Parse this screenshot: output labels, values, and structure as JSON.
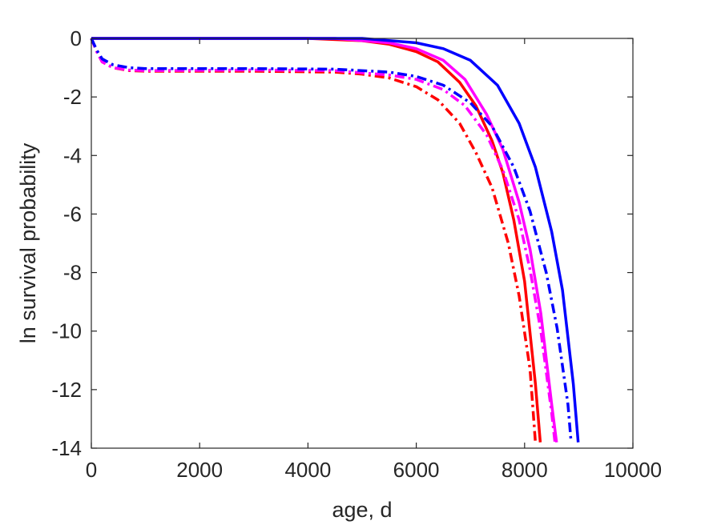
{
  "chart_data": {
    "type": "line",
    "title": "",
    "xlabel": "age, d",
    "ylabel": "ln survival probability",
    "xlim": [
      0,
      10000
    ],
    "ylim": [
      -14,
      0
    ],
    "xticks": [
      0,
      2000,
      4000,
      6000,
      8000,
      10000
    ],
    "yticks": [
      0,
      -2,
      -4,
      -6,
      -8,
      -10,
      -12,
      -14
    ],
    "xtick_labels": [
      "0",
      "2000",
      "4000",
      "6000",
      "8000",
      "10000"
    ],
    "ytick_labels": [
      "0",
      "-2",
      "-4",
      "-6",
      "-8",
      "-10",
      "-12",
      "-14"
    ],
    "grid": false,
    "legend": "none",
    "series": [
      {
        "color": "#ff0000",
        "style": "solid",
        "x": [
          0,
          4000,
          5000,
          5500,
          6000,
          6400,
          6800,
          7100,
          7400,
          7600,
          7800,
          8000,
          8200,
          8290
        ],
        "y": [
          0,
          0,
          -0.08,
          -0.2,
          -0.45,
          -0.8,
          -1.5,
          -2.3,
          -3.5,
          -4.6,
          -6.2,
          -8.3,
          -11.8,
          -13.8
        ]
      },
      {
        "color": "#ff00ff",
        "style": "solid",
        "x": [
          0,
          4500,
          5500,
          6000,
          6500,
          6900,
          7300,
          7600,
          7900,
          8100,
          8300,
          8500,
          8590
        ],
        "y": [
          0,
          0,
          -0.15,
          -0.35,
          -0.75,
          -1.4,
          -2.6,
          -3.8,
          -5.6,
          -7.2,
          -9.4,
          -12.5,
          -13.8
        ]
      },
      {
        "color": "#0000ff",
        "style": "solid",
        "x": [
          0,
          5000,
          6000,
          6500,
          7000,
          7500,
          7900,
          8200,
          8500,
          8700,
          8900,
          8990
        ],
        "y": [
          0,
          0,
          -0.15,
          -0.35,
          -0.75,
          -1.6,
          -2.9,
          -4.4,
          -6.6,
          -8.6,
          -11.8,
          -13.8
        ]
      },
      {
        "color": "#ff0000",
        "style": "dashdot",
        "x": [
          0,
          100,
          200,
          400,
          700,
          1000,
          3000,
          4500,
          5000,
          5500,
          6000,
          6400,
          6800,
          7100,
          7400,
          7700,
          7900,
          8100,
          8200
        ],
        "y": [
          0,
          -0.45,
          -0.8,
          -1.0,
          -1.1,
          -1.12,
          -1.12,
          -1.15,
          -1.22,
          -1.35,
          -1.65,
          -2.1,
          -2.9,
          -3.9,
          -5.1,
          -7.0,
          -8.8,
          -11.3,
          -13.8
        ]
      },
      {
        "color": "#ff00ff",
        "style": "dashdot",
        "x": [
          0,
          100,
          200,
          400,
          700,
          1000,
          3000,
          4500,
          5500,
          6000,
          6500,
          6900,
          7300,
          7600,
          7900,
          8100,
          8300,
          8500,
          8560
        ],
        "y": [
          0,
          -0.45,
          -0.8,
          -1.0,
          -1.08,
          -1.1,
          -1.08,
          -1.1,
          -1.25,
          -1.4,
          -1.75,
          -2.3,
          -3.3,
          -4.5,
          -6.2,
          -7.9,
          -10.0,
          -12.8,
          -13.8
        ]
      },
      {
        "color": "#0000ff",
        "style": "dashdot",
        "x": [
          0,
          100,
          200,
          400,
          700,
          1000,
          3000,
          4500,
          5500,
          6000,
          6500,
          7000,
          7400,
          7800,
          8100,
          8400,
          8600,
          8800,
          8860
        ],
        "y": [
          0,
          -0.4,
          -0.7,
          -0.9,
          -1.0,
          -1.03,
          -1.03,
          -1.05,
          -1.15,
          -1.3,
          -1.6,
          -2.2,
          -3.0,
          -4.4,
          -5.9,
          -8.0,
          -9.9,
          -12.5,
          -13.8
        ]
      }
    ]
  }
}
